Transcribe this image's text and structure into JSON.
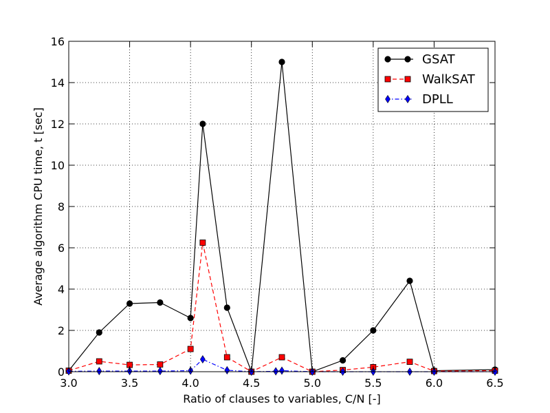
{
  "chart_data": {
    "type": "line",
    "title": "",
    "xlabel": "Ratio of clauses to variables, C/N [-]",
    "ylabel": "Average algorithm CPU time, t [sec]",
    "xlim": [
      3.0,
      6.5
    ],
    "ylim": [
      0,
      16
    ],
    "xticks": [
      "3.0",
      "3.5",
      "4.0",
      "4.5",
      "5.0",
      "5.5",
      "6.0",
      "6.5"
    ],
    "yticks": [
      "0",
      "2",
      "4",
      "6",
      "8",
      "10",
      "12",
      "14",
      "16"
    ],
    "grid": true,
    "legend_position": "top-right",
    "series": [
      {
        "name": "GSAT",
        "color": "#000000",
        "line_style": "solid",
        "marker": "circle",
        "x": [
          3.0,
          3.25,
          3.5,
          3.75,
          4.0,
          4.1,
          4.3,
          4.5,
          4.75,
          5.0,
          5.25,
          5.5,
          5.8,
          6.0,
          6.5
        ],
        "y": [
          0.05,
          1.9,
          3.3,
          3.35,
          2.6,
          12.0,
          3.1,
          0.0,
          15.0,
          0.0,
          0.55,
          2.0,
          4.4,
          0.05,
          0.1
        ]
      },
      {
        "name": "WalkSAT",
        "color": "#ff0000",
        "line_style": "dashed",
        "marker": "square",
        "x": [
          3.0,
          3.25,
          3.5,
          3.75,
          4.0,
          4.1,
          4.3,
          4.5,
          4.75,
          5.0,
          5.25,
          5.5,
          5.8,
          6.0,
          6.5
        ],
        "y": [
          0.05,
          0.5,
          0.33,
          0.35,
          1.1,
          6.25,
          0.7,
          0.0,
          0.7,
          0.0,
          0.08,
          0.22,
          0.48,
          0.03,
          0.05
        ]
      },
      {
        "name": "DPLL",
        "color": "#0000ff",
        "line_style": "dashdot",
        "marker": "diamond",
        "x": [
          3.0,
          3.25,
          3.5,
          3.75,
          4.0,
          4.1,
          4.3,
          4.5,
          4.7,
          4.75,
          5.0,
          5.25,
          5.5,
          5.8,
          6.0,
          6.5
        ],
        "y": [
          0.02,
          0.03,
          0.03,
          0.03,
          0.05,
          0.6,
          0.07,
          0.0,
          0.02,
          0.05,
          0.0,
          0.0,
          0.0,
          0.0,
          0.0,
          0.0
        ]
      }
    ]
  }
}
